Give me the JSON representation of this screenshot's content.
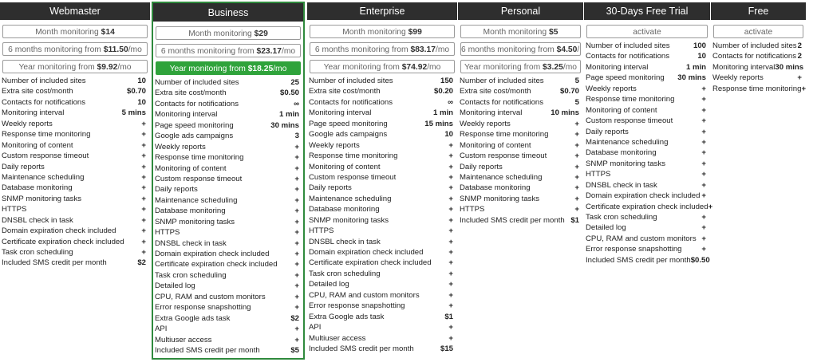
{
  "plans": [
    {
      "name": "Webmaster",
      "highlight": false,
      "options": [
        {
          "text": "Month monitoring ",
          "price": "$14",
          "suffix": ""
        },
        {
          "text": "6 months monitoring from ",
          "price": "$11.50",
          "suffix": "/mo"
        },
        {
          "text": "Year monitoring from ",
          "price": "$9.92",
          "suffix": "/mo"
        }
      ],
      "features": [
        {
          "label": "Number of included sites",
          "value": "10"
        },
        {
          "label": "Extra site cost/month",
          "value": "$0.70"
        },
        {
          "label": "Contacts for notifications",
          "value": "10"
        },
        {
          "label": "Monitoring interval",
          "value": "5 mins"
        },
        {
          "label": "Weekly reports",
          "value": "+"
        },
        {
          "label": "Response time monitoring",
          "value": "+"
        },
        {
          "label": "Monitoring of content",
          "value": "+"
        },
        {
          "label": "Custom response timeout",
          "value": "+"
        },
        {
          "label": "Daily reports",
          "value": "+"
        },
        {
          "label": "Maintenance scheduling",
          "value": "+"
        },
        {
          "label": "Database monitoring",
          "value": "+"
        },
        {
          "label": "SNMP monitoring tasks",
          "value": "+"
        },
        {
          "label": "HTTPS",
          "value": "+"
        },
        {
          "label": "DNSBL check in task",
          "value": "+"
        },
        {
          "label": "Domain expiration check included",
          "value": "+"
        },
        {
          "label": "Certificate expiration check included",
          "value": "+"
        },
        {
          "label": "Task cron scheduling",
          "value": "+"
        },
        {
          "label": "Included SMS credit per month",
          "value": "$2"
        }
      ]
    },
    {
      "name": "Business",
      "highlight": true,
      "options": [
        {
          "text": "Month monitoring ",
          "price": "$29",
          "suffix": ""
        },
        {
          "text": "6 months monitoring from ",
          "price": "$23.17",
          "suffix": "/mo"
        },
        {
          "text": "Year monitoring from ",
          "price": "$18.25",
          "suffix": "/mo",
          "active": true
        }
      ],
      "features": [
        {
          "label": "Number of included sites",
          "value": "25"
        },
        {
          "label": "Extra site cost/month",
          "value": "$0.50"
        },
        {
          "label": "Contacts for notifications",
          "value": "∞"
        },
        {
          "label": "Monitoring interval",
          "value": "1 min"
        },
        {
          "label": "Page speed monitoring",
          "value": "30 mins"
        },
        {
          "label": "Google ads campaigns",
          "value": "3"
        },
        {
          "label": "Weekly reports",
          "value": "+"
        },
        {
          "label": "Response time monitoring",
          "value": "+"
        },
        {
          "label": "Monitoring of content",
          "value": "+"
        },
        {
          "label": "Custom response timeout",
          "value": "+"
        },
        {
          "label": "Daily reports",
          "value": "+"
        },
        {
          "label": "Maintenance scheduling",
          "value": "+"
        },
        {
          "label": "Database monitoring",
          "value": "+"
        },
        {
          "label": "SNMP monitoring tasks",
          "value": "+"
        },
        {
          "label": "HTTPS",
          "value": "+"
        },
        {
          "label": "DNSBL check in task",
          "value": "+"
        },
        {
          "label": "Domain expiration check included",
          "value": "+"
        },
        {
          "label": "Certificate expiration check included",
          "value": "+"
        },
        {
          "label": "Task cron scheduling",
          "value": "+"
        },
        {
          "label": "Detailed log",
          "value": "+"
        },
        {
          "label": "CPU, RAM and custom monitors",
          "value": "+"
        },
        {
          "label": "Error response snapshotting",
          "value": "+"
        },
        {
          "label": "Extra Google ads task",
          "value": "$2"
        },
        {
          "label": "API",
          "value": "+"
        },
        {
          "label": "Multiuser access",
          "value": "+"
        },
        {
          "label": "Included SMS credit per month",
          "value": "$5"
        }
      ]
    },
    {
      "name": "Enterprise",
      "highlight": false,
      "options": [
        {
          "text": "Month monitoring ",
          "price": "$99",
          "suffix": ""
        },
        {
          "text": "6 months monitoring from ",
          "price": "$83.17",
          "suffix": "/mo"
        },
        {
          "text": "Year monitoring from ",
          "price": "$74.92",
          "suffix": "/mo"
        }
      ],
      "features": [
        {
          "label": "Number of included sites",
          "value": "150"
        },
        {
          "label": "Extra site cost/month",
          "value": "$0.20"
        },
        {
          "label": "Contacts for notifications",
          "value": "∞"
        },
        {
          "label": "Monitoring interval",
          "value": "1 min"
        },
        {
          "label": "Page speed monitoring",
          "value": "15 mins"
        },
        {
          "label": "Google ads campaigns",
          "value": "10"
        },
        {
          "label": "Weekly reports",
          "value": "+"
        },
        {
          "label": "Response time monitoring",
          "value": "+"
        },
        {
          "label": "Monitoring of content",
          "value": "+"
        },
        {
          "label": "Custom response timeout",
          "value": "+"
        },
        {
          "label": "Daily reports",
          "value": "+"
        },
        {
          "label": "Maintenance scheduling",
          "value": "+"
        },
        {
          "label": "Database monitoring",
          "value": "+"
        },
        {
          "label": "SNMP monitoring tasks",
          "value": "+"
        },
        {
          "label": "HTTPS",
          "value": "+"
        },
        {
          "label": "DNSBL check in task",
          "value": "+"
        },
        {
          "label": "Domain expiration check included",
          "value": "+"
        },
        {
          "label": "Certificate expiration check included",
          "value": "+"
        },
        {
          "label": "Task cron scheduling",
          "value": "+"
        },
        {
          "label": "Detailed log",
          "value": "+"
        },
        {
          "label": "CPU, RAM and custom monitors",
          "value": "+"
        },
        {
          "label": "Error response snapshotting",
          "value": "+"
        },
        {
          "label": "Extra Google ads task",
          "value": "$1"
        },
        {
          "label": "API",
          "value": "+"
        },
        {
          "label": "Multiuser access",
          "value": "+"
        },
        {
          "label": "Included SMS credit per month",
          "value": "$15"
        }
      ]
    },
    {
      "name": "Personal",
      "highlight": false,
      "options": [
        {
          "text": "Month monitoring ",
          "price": "$5",
          "suffix": ""
        },
        {
          "text": "6 months monitoring from ",
          "price": "$4.50",
          "suffix": "/mo"
        },
        {
          "text": "Year monitoring from ",
          "price": "$3.25",
          "suffix": "/mo"
        }
      ],
      "features": [
        {
          "label": "Number of included sites",
          "value": "5"
        },
        {
          "label": "Extra site cost/month",
          "value": "$0.70"
        },
        {
          "label": "Contacts for notifications",
          "value": "5"
        },
        {
          "label": "Monitoring interval",
          "value": "10 mins"
        },
        {
          "label": "Weekly reports",
          "value": "+"
        },
        {
          "label": "Response time monitoring",
          "value": "+"
        },
        {
          "label": "Monitoring of content",
          "value": "+"
        },
        {
          "label": "Custom response timeout",
          "value": "+"
        },
        {
          "label": "Daily reports",
          "value": "+"
        },
        {
          "label": "Maintenance scheduling",
          "value": "+"
        },
        {
          "label": "Database monitoring",
          "value": "+"
        },
        {
          "label": "SNMP monitoring tasks",
          "value": "+"
        },
        {
          "label": "HTTPS",
          "value": "+"
        },
        {
          "label": "Included SMS credit per month",
          "value": "$1"
        }
      ]
    },
    {
      "name": "30-Days Free Trial",
      "highlight": false,
      "options": [
        {
          "text": "activate",
          "price": "",
          "suffix": ""
        }
      ],
      "features": [
        {
          "label": "Number of included sites",
          "value": "100"
        },
        {
          "label": "Contacts for notifications",
          "value": "10"
        },
        {
          "label": "Monitoring interval",
          "value": "1 min"
        },
        {
          "label": "Page speed monitoring",
          "value": "30 mins"
        },
        {
          "label": "Weekly reports",
          "value": "+"
        },
        {
          "label": "Response time monitoring",
          "value": "+"
        },
        {
          "label": "Monitoring of content",
          "value": "+"
        },
        {
          "label": "Custom response timeout",
          "value": "+"
        },
        {
          "label": "Daily reports",
          "value": "+"
        },
        {
          "label": "Maintenance scheduling",
          "value": "+"
        },
        {
          "label": "Database monitoring",
          "value": "+"
        },
        {
          "label": "SNMP monitoring tasks",
          "value": "+"
        },
        {
          "label": "HTTPS",
          "value": "+"
        },
        {
          "label": "DNSBL check in task",
          "value": "+"
        },
        {
          "label": "Domain expiration check included",
          "value": "+"
        },
        {
          "label": "Certificate expiration check included",
          "value": "+"
        },
        {
          "label": "Task cron scheduling",
          "value": "+"
        },
        {
          "label": "Detailed log",
          "value": "+"
        },
        {
          "label": "CPU, RAM and custom monitors",
          "value": "+"
        },
        {
          "label": "Error response snapshotting",
          "value": "+"
        },
        {
          "label": "Included SMS credit per month",
          "value": "$0.50"
        }
      ]
    },
    {
      "name": "Free",
      "highlight": false,
      "options": [
        {
          "text": "activate",
          "price": "",
          "suffix": ""
        }
      ],
      "features": [
        {
          "label": "Number of included sites",
          "value": "2"
        },
        {
          "label": "Contacts for notifications",
          "value": "2"
        },
        {
          "label": "Monitoring interval",
          "value": "30 mins"
        },
        {
          "label": "Weekly reports",
          "value": "+"
        },
        {
          "label": "Response time monitoring",
          "value": "+"
        }
      ]
    }
  ],
  "colors": {
    "header_bg": "#2e2e2e",
    "accent_green": "#2fa33b",
    "highlight_border": "#2f8a3d"
  }
}
